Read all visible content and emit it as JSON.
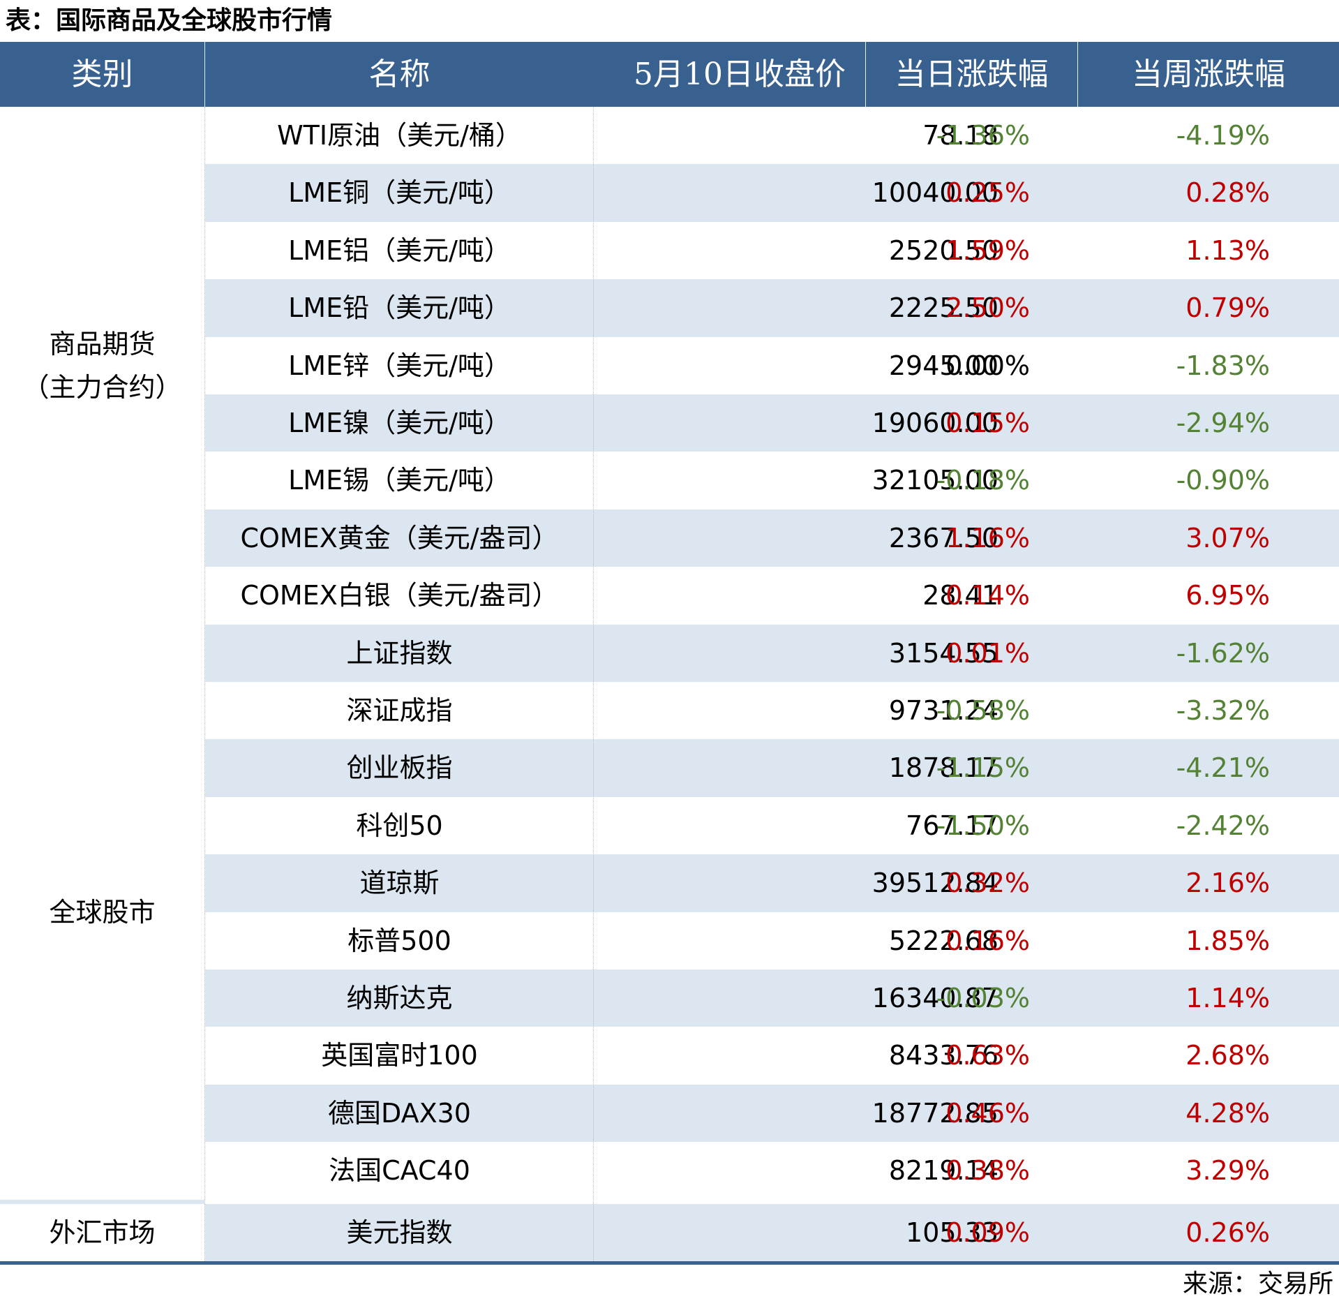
{
  "title": "表：国际商品及全球股市行情",
  "source": "来源：交易所",
  "colors": {
    "header_bg": "#386190",
    "row_shade": "#dce6f1",
    "up": "#c00000",
    "down": "#548235",
    "flat": "#000000"
  },
  "headers": [
    "类别",
    "名称",
    "5月10日收盘价",
    "当日涨跌幅",
    "当周涨跌幅"
  ],
  "categories": [
    {
      "label_line1": "商品期货",
      "label_line2": "（主力合约）"
    },
    {
      "label_line1": "全球股市"
    },
    {
      "label_line1": "外汇市场"
    }
  ],
  "rows": [
    {
      "name": "WTI原油（美元/桶）",
      "close": "78.18",
      "day": "-1.36%",
      "week": "-4.19%",
      "day_dir": "down",
      "week_dir": "down"
    },
    {
      "name": "LME铜（美元/吨）",
      "close": "10040.00",
      "day": "0.25%",
      "week": "0.28%",
      "day_dir": "up",
      "week_dir": "up"
    },
    {
      "name": "LME铝（美元/吨）",
      "close": "2520.50",
      "day": "1.59%",
      "week": "1.13%",
      "day_dir": "up",
      "week_dir": "up"
    },
    {
      "name": "LME铅（美元/吨）",
      "close": "2225.50",
      "day": "2.50%",
      "week": "0.79%",
      "day_dir": "up",
      "week_dir": "up"
    },
    {
      "name": "LME锌（美元/吨）",
      "close": "2945.00",
      "day": "0.00%",
      "week": "-1.83%",
      "day_dir": "flat",
      "week_dir": "down"
    },
    {
      "name": "LME镍（美元/吨）",
      "close": "19060.00",
      "day": "0.15%",
      "week": "-2.94%",
      "day_dir": "up",
      "week_dir": "down"
    },
    {
      "name": "LME锡（美元/吨）",
      "close": "32105.00",
      "day": "-0.18%",
      "week": "-0.90%",
      "day_dir": "down",
      "week_dir": "down"
    },
    {
      "name": "COMEX黄金（美元/盎司）",
      "close": "2367.50",
      "day": "1.16%",
      "week": "3.07%",
      "day_dir": "up",
      "week_dir": "up"
    },
    {
      "name": "COMEX白银（美元/盎司）",
      "close": "28.41",
      "day": "0.14%",
      "week": "6.95%",
      "day_dir": "up",
      "week_dir": "up"
    },
    {
      "name": "上证指数",
      "close": "3154.55",
      "day": "0.01%",
      "week": "-1.62%",
      "day_dir": "up",
      "week_dir": "down"
    },
    {
      "name": "深证成指",
      "close": "9731.24",
      "day": "-0.58%",
      "week": "-3.32%",
      "day_dir": "down",
      "week_dir": "down"
    },
    {
      "name": "创业板指",
      "close": "1878.17",
      "day": "-1.15%",
      "week": "-4.21%",
      "day_dir": "down",
      "week_dir": "down"
    },
    {
      "name": "科创50",
      "close": "767.17",
      "day": "-1.50%",
      "week": "-2.42%",
      "day_dir": "down",
      "week_dir": "down"
    },
    {
      "name": "道琼斯",
      "close": "39512.84",
      "day": "0.32%",
      "week": "2.16%",
      "day_dir": "up",
      "week_dir": "up"
    },
    {
      "name": "标普500",
      "close": "5222.68",
      "day": "0.16%",
      "week": "1.85%",
      "day_dir": "up",
      "week_dir": "up"
    },
    {
      "name": "纳斯达克",
      "close": "16340.87",
      "day": "-0.03%",
      "week": "1.14%",
      "day_dir": "down",
      "week_dir": "up"
    },
    {
      "name": "英国富时100",
      "close": "8433.76",
      "day": "0.63%",
      "week": "2.68%",
      "day_dir": "up",
      "week_dir": "up"
    },
    {
      "name": "德国DAX30",
      "close": "18772.85",
      "day": "0.46%",
      "week": "4.28%",
      "day_dir": "up",
      "week_dir": "up"
    },
    {
      "name": "法国CAC40",
      "close": "8219.14",
      "day": "0.38%",
      "week": "3.29%",
      "day_dir": "up",
      "week_dir": "up"
    },
    {
      "name": "美元指数",
      "close": "105.33",
      "day": "0.09%",
      "week": "0.26%",
      "day_dir": "up",
      "week_dir": "up"
    }
  ]
}
